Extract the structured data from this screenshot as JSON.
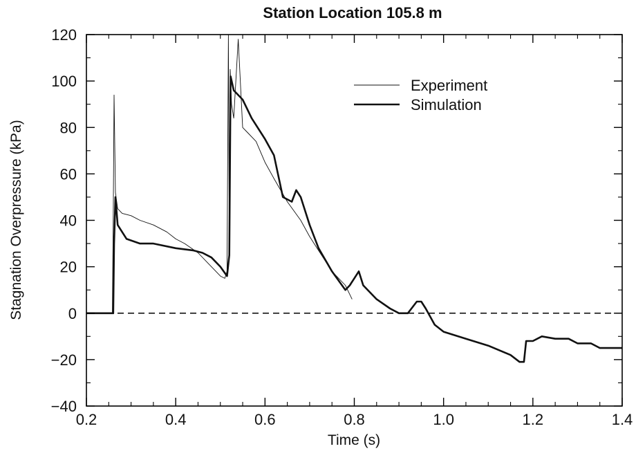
{
  "chart_data": {
    "type": "line",
    "title": "Station Location 105.8 m",
    "xlabel": "Time (s)",
    "ylabel": "Stagnation Overpressure (kPa)",
    "xlim": [
      0.2,
      1.4
    ],
    "ylim": [
      -40,
      120
    ],
    "x_ticks": [
      "0.2",
      "0.4",
      "0.6",
      "0.8",
      "1.0",
      "1.2",
      "1.4"
    ],
    "y_ticks": [
      "-40",
      "-20",
      "0",
      "20",
      "40",
      "60",
      "80",
      "100",
      "120"
    ],
    "grid": false,
    "legend_position": "top-right",
    "colors": {
      "series": "#111111",
      "axes": "#000000"
    },
    "reference_line": {
      "y": 0,
      "style": "dashed"
    },
    "series": [
      {
        "name": "Experiment",
        "style": "thin",
        "x": [
          0.2,
          0.255,
          0.258,
          0.26,
          0.262,
          0.265,
          0.27,
          0.28,
          0.3,
          0.32,
          0.35,
          0.38,
          0.4,
          0.42,
          0.45,
          0.48,
          0.5,
          0.51,
          0.515,
          0.518,
          0.52,
          0.522,
          0.525,
          0.53,
          0.54,
          0.55,
          0.56,
          0.58,
          0.6,
          0.62,
          0.65,
          0.68,
          0.7,
          0.72,
          0.75,
          0.78,
          0.795
        ],
        "y": [
          0,
          0,
          0,
          40,
          94,
          52,
          45,
          43,
          42,
          40,
          38,
          35,
          32,
          30,
          26,
          20,
          16,
          15,
          18,
          120,
          25,
          105,
          90,
          84,
          118,
          80,
          78,
          74,
          65,
          58,
          48,
          40,
          33,
          27,
          18,
          12,
          6
        ]
      },
      {
        "name": "Simulation",
        "style": "thick",
        "x": [
          0.2,
          0.26,
          0.262,
          0.265,
          0.27,
          0.29,
          0.32,
          0.35,
          0.4,
          0.44,
          0.46,
          0.48,
          0.5,
          0.515,
          0.52,
          0.523,
          0.53,
          0.55,
          0.57,
          0.6,
          0.62,
          0.64,
          0.66,
          0.67,
          0.68,
          0.7,
          0.72,
          0.75,
          0.78,
          0.79,
          0.8,
          0.81,
          0.82,
          0.85,
          0.88,
          0.9,
          0.92,
          0.94,
          0.95,
          0.96,
          0.98,
          1.0,
          1.05,
          1.1,
          1.15,
          1.17,
          1.18,
          1.185,
          1.2,
          1.22,
          1.25,
          1.28,
          1.3,
          1.33,
          1.35,
          1.38,
          1.4
        ],
        "y": [
          0,
          0,
          30,
          50,
          38,
          32,
          30,
          30,
          28,
          27,
          26,
          24,
          20,
          16,
          25,
          102,
          96,
          92,
          84,
          75,
          68,
          50,
          48,
          53,
          50,
          38,
          28,
          18,
          10,
          12,
          15,
          18,
          12,
          6,
          2,
          0,
          0,
          5,
          5,
          2,
          -5,
          -8,
          -11,
          -14,
          -18,
          -21,
          -21,
          -12,
          -12,
          -10,
          -11,
          -11,
          -13,
          -13,
          -15,
          -15,
          -15
        ]
      }
    ]
  }
}
